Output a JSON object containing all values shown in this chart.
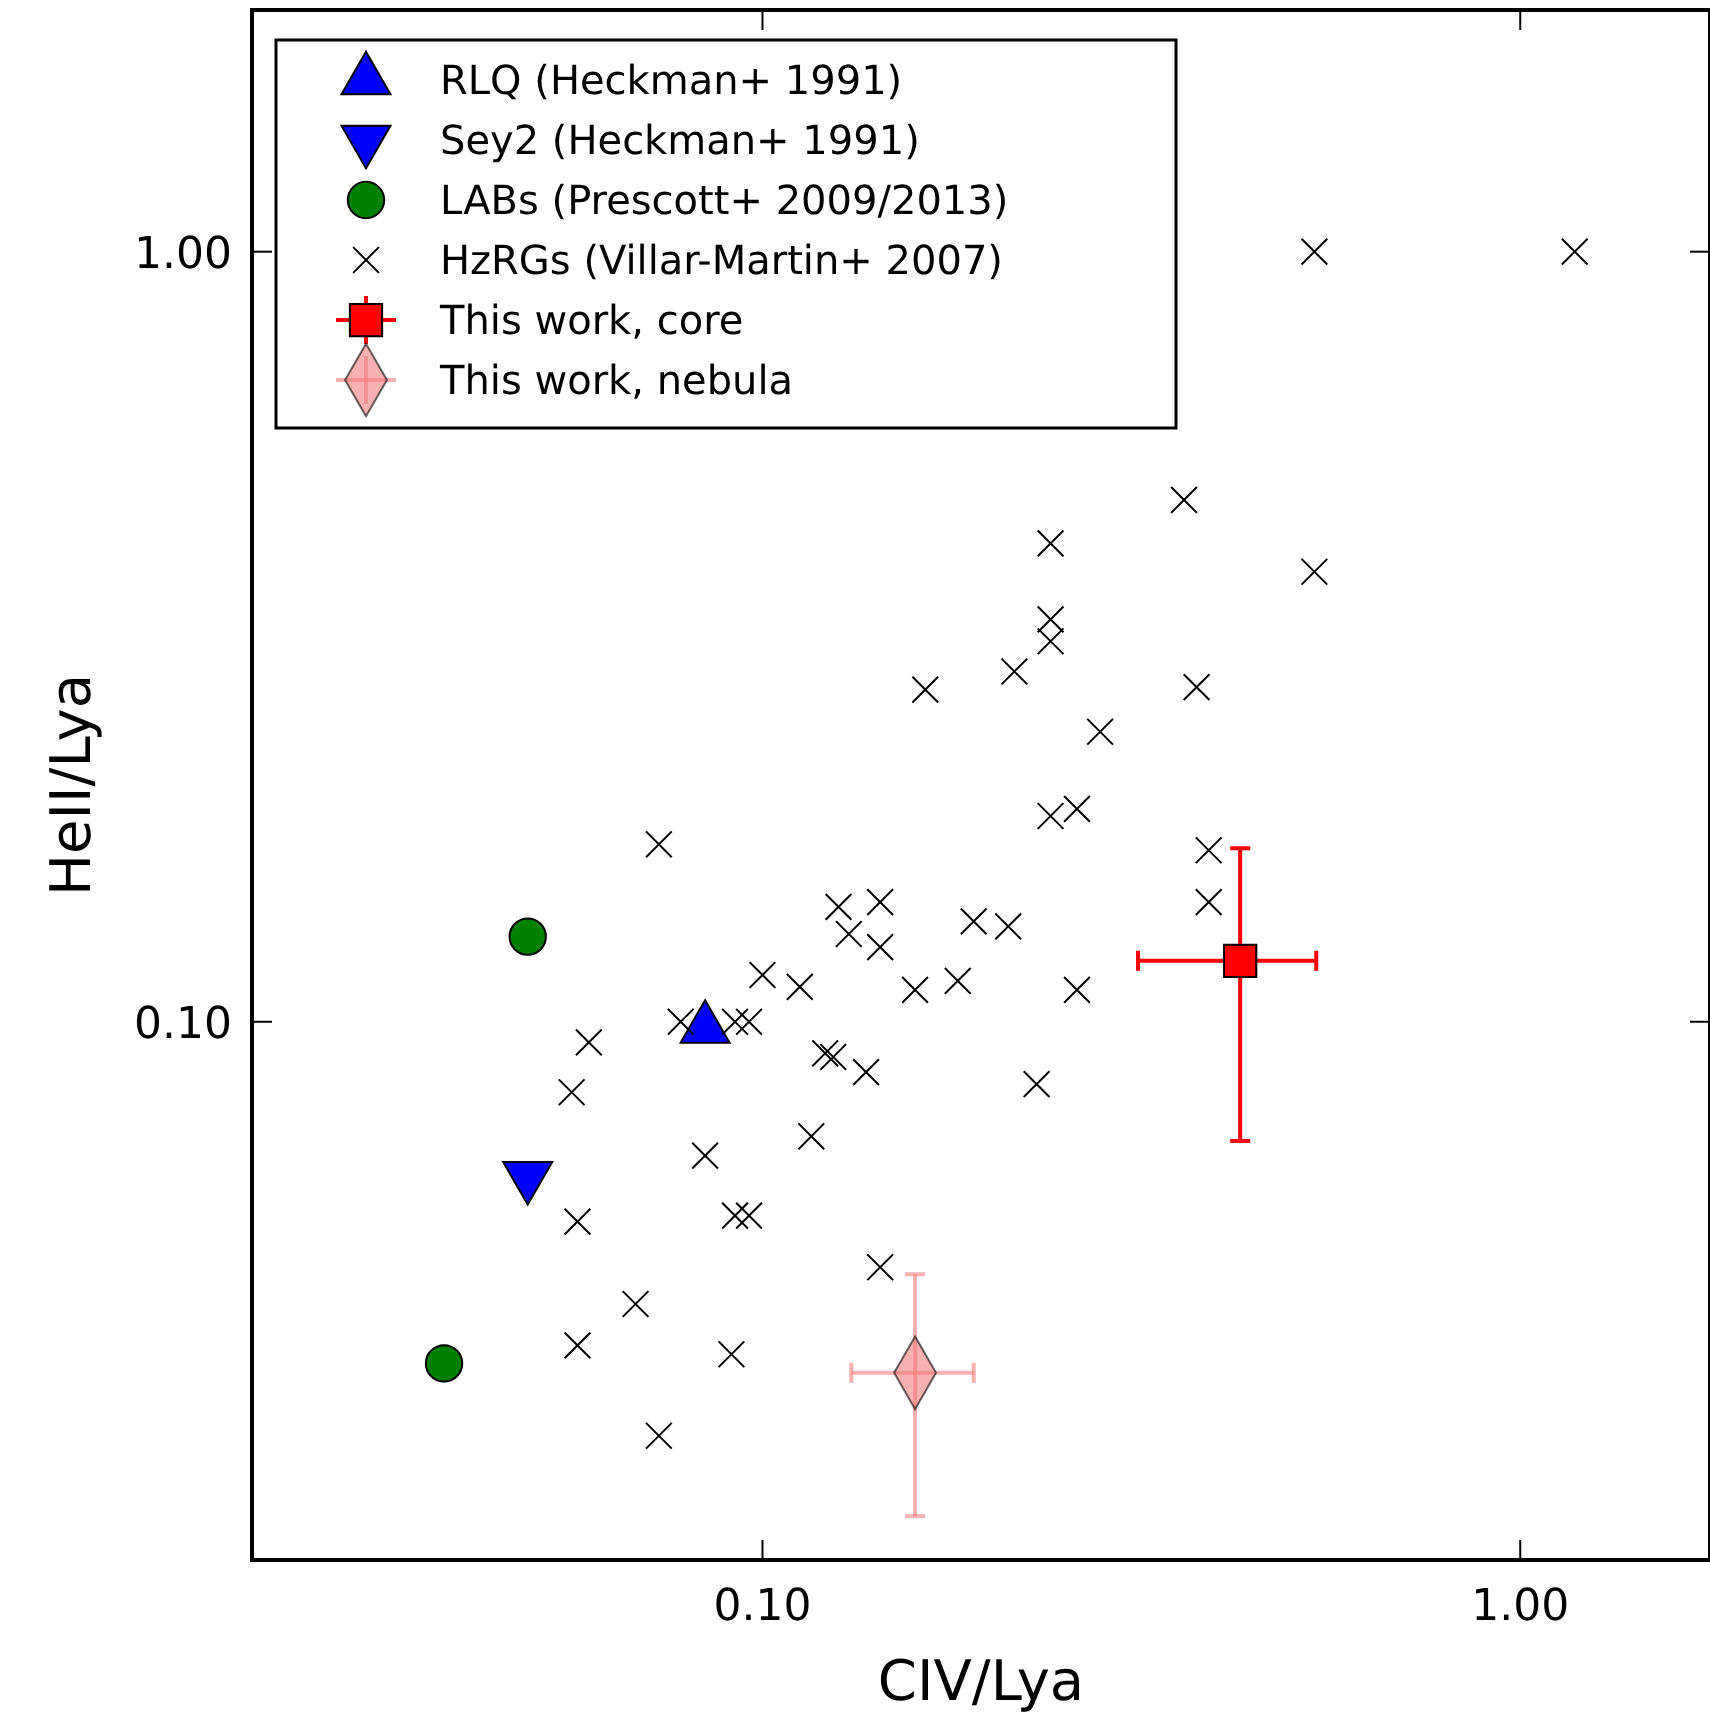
{
  "chart_data": {
    "type": "scatter",
    "xlabel": "CIV/Lya",
    "ylabel": "HeII/Lya",
    "log": "xy",
    "xlim": [
      0.0212,
      1.78
    ],
    "ylim": [
      0.02,
      2.06
    ],
    "xticks": [
      {
        "value": 0.1,
        "label": "0.10"
      },
      {
        "value": 1,
        "label": "1.00"
      }
    ],
    "yticks": [
      {
        "value": 0.1,
        "label": "0.10"
      },
      {
        "value": 1,
        "label": "1.00"
      }
    ],
    "grid": false,
    "legend": "top left",
    "series": [
      {
        "name": "RLQ (Heckman+ 1991)",
        "color": "#0000ff",
        "marker": "triangle",
        "x": [
          0.084
        ],
        "values": [
          0.098
        ]
      },
      {
        "name": "Sey2 (Heckman+ 1991)",
        "color": "#0000ff",
        "marker": "triangle-down",
        "x": [
          0.049
        ],
        "values": [
          0.063
        ]
      },
      {
        "name": "LABs (Prescott+ 2009/2013)",
        "color": "#008000",
        "marker": "circle",
        "x": [
          0.049,
          0.038
        ],
        "values": [
          0.129,
          0.036
        ]
      },
      {
        "name": "HzRGs (Villar-Martin+ 2007)",
        "color": "#000000",
        "marker": "cross",
        "x": [
          0.535,
          1.18,
          0.36,
          0.535,
          0.24,
          0.24,
          0.24,
          0.215,
          0.164,
          0.374,
          0.279,
          0.24,
          0.26,
          0.388,
          0.388,
          0.073,
          0.126,
          0.143,
          0.13,
          0.143,
          0.19,
          0.211,
          0.1,
          0.112,
          0.159,
          0.181,
          0.26,
          0.078,
          0.092,
          0.096,
          0.121,
          0.124,
          0.137,
          0.23,
          0.059,
          0.056,
          0.116,
          0.084,
          0.092,
          0.096,
          0.057,
          0.068,
          0.143,
          0.057,
          0.091,
          0.073
        ],
        "values": [
          1.0,
          1.0,
          0.476,
          0.384,
          0.418,
          0.333,
          0.312,
          0.285,
          0.27,
          0.272,
          0.238,
          0.185,
          0.189,
          0.167,
          0.143,
          0.17,
          0.141,
          0.143,
          0.13,
          0.125,
          0.135,
          0.133,
          0.115,
          0.111,
          0.11,
          0.113,
          0.11,
          0.1,
          0.1,
          0.1,
          0.091,
          0.09,
          0.086,
          0.083,
          0.094,
          0.081,
          0.071,
          0.067,
          0.056,
          0.056,
          0.055,
          0.043,
          0.048,
          0.038,
          0.037,
          0.029
        ]
      },
      {
        "name": "This work, core",
        "color": "#ff0000",
        "marker": "square",
        "x": [
          0.427
        ],
        "values": [
          0.12
        ],
        "xerrors": [
          [
            0.313,
            0.538
          ]
        ],
        "errors": [
          [
            0.07,
            0.168
          ]
        ]
      },
      {
        "name": "This work, nebula",
        "color": "#f47c7c",
        "marker": "diamond",
        "x": [
          0.159
        ],
        "values": [
          0.035
        ],
        "xerrors": [
          [
            0.131,
            0.19
          ]
        ],
        "errors": [
          [
            0.0228,
            0.047
          ]
        ]
      }
    ]
  }
}
